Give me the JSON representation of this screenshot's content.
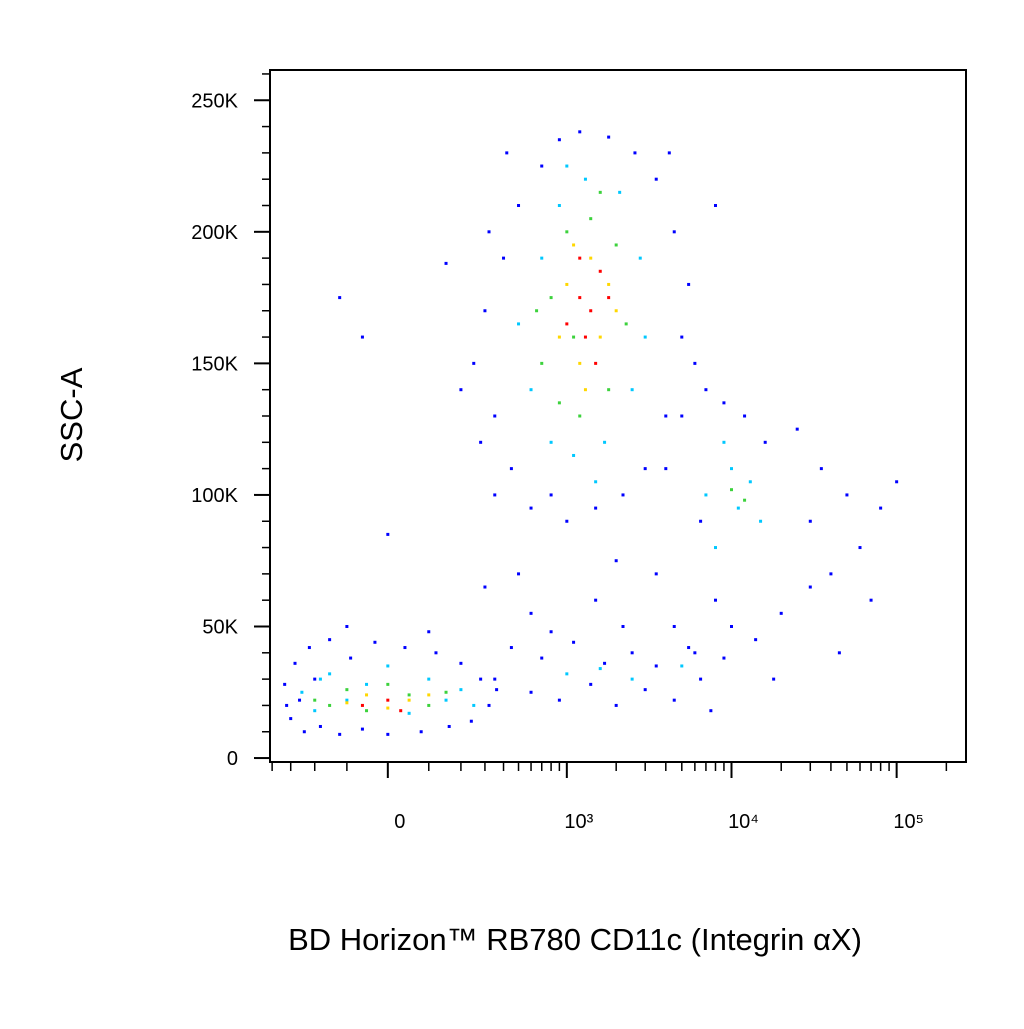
{
  "chart_data": {
    "type": "scatter",
    "x_label": "BD Horizon™ RB780 CD11c (Integrin αX)",
    "y_label": "SSC-A",
    "xscale": "biexponential",
    "xlim": [
      -413,
      263000
    ],
    "ylim": [
      -1500,
      261500
    ],
    "xticks": [
      {
        "value": 0,
        "label": "0"
      },
      {
        "value": 1000,
        "label": "10³"
      },
      {
        "value": 10000,
        "label": "10⁴"
      },
      {
        "value": 100000,
        "label": "10⁵"
      }
    ],
    "xminorticks": [
      -400,
      -300,
      -200,
      -100,
      100,
      200,
      300,
      400,
      500,
      600,
      700,
      800,
      900,
      2000,
      3000,
      4000,
      5000,
      6000,
      7000,
      8000,
      9000,
      20000,
      30000,
      40000,
      50000,
      60000,
      70000,
      80000,
      90000,
      200000
    ],
    "yticks": [
      {
        "value": 0,
        "label": "0"
      },
      {
        "value": 50000,
        "label": "50K"
      },
      {
        "value": 100000,
        "label": "100K"
      },
      {
        "value": 150000,
        "label": "150K"
      },
      {
        "value": 200000,
        "label": "200K"
      },
      {
        "value": 250000,
        "label": "250K"
      }
    ],
    "yminorticks": [
      10000,
      20000,
      30000,
      40000,
      60000,
      70000,
      80000,
      90000,
      110000,
      120000,
      130000,
      140000,
      160000,
      170000,
      180000,
      190000,
      210000,
      220000,
      230000,
      240000,
      260000
    ],
    "series": [
      {
        "color": "#0000ff",
        "x": [
          -330,
          -300,
          -280,
          -260,
          -240,
          -220,
          -200,
          -180,
          -150,
          -120,
          -90,
          -60,
          -30,
          0,
          40,
          80,
          120,
          160,
          200,
          240,
          280,
          320,
          360,
          -320,
          -100,
          100,
          250,
          300,
          350,
          400,
          450,
          500,
          600,
          700,
          800,
          900,
          1000,
          1200,
          1500,
          1800,
          2200,
          2600,
          3000,
          3500,
          4000,
          4500,
          5000,
          5500,
          6000,
          350,
          280,
          420,
          4200,
          320,
          -120,
          150,
          -60,
          0,
          200,
          300,
          500,
          1500,
          2000,
          8000,
          600,
          3500,
          4000,
          4500,
          5000,
          6000,
          6500,
          7000,
          8000,
          9000,
          10000,
          12000,
          14000,
          16000,
          20000,
          25000,
          30000,
          35000,
          40000,
          50000,
          60000,
          70000,
          80000,
          100000,
          45000,
          18000,
          30000,
          350,
          450,
          600,
          700,
          900,
          1100,
          1400,
          1700,
          2000,
          2500,
          3000,
          3500,
          4500,
          5500,
          6500,
          7500,
          9000,
          800,
          2200
        ],
        "y": [
          28000,
          15000,
          36000,
          22000,
          10000,
          42000,
          30000,
          12000,
          45000,
          9000,
          38000,
          11000,
          44000,
          9000,
          42000,
          10000,
          40000,
          12000,
          36000,
          14000,
          30000,
          20000,
          26000,
          20000,
          50000,
          48000,
          150000,
          170000,
          130000,
          190000,
          110000,
          210000,
          95000,
          225000,
          100000,
          235000,
          90000,
          238000,
          95000,
          236000,
          100000,
          230000,
          110000,
          220000,
          130000,
          200000,
          160000,
          180000,
          150000,
          100000,
          120000,
          230000,
          230000,
          200000,
          175000,
          188000,
          160000,
          85000,
          140000,
          65000,
          70000,
          60000,
          75000,
          210000,
          55000,
          70000,
          110000,
          50000,
          130000,
          40000,
          90000,
          140000,
          60000,
          135000,
          50000,
          130000,
          45000,
          120000,
          55000,
          125000,
          65000,
          110000,
          70000,
          100000,
          80000,
          60000,
          95000,
          105000,
          40000,
          30000,
          90000,
          30000,
          42000,
          25000,
          38000,
          22000,
          44000,
          28000,
          36000,
          20000,
          40000,
          26000,
          35000,
          22000,
          42000,
          30000,
          18000,
          38000,
          48000,
          50000
        ]
      },
      {
        "color": "#00c8ff",
        "x": [
          -250,
          -200,
          -150,
          -100,
          -50,
          50,
          100,
          150,
          200,
          -180,
          0,
          250,
          600,
          700,
          800,
          900,
          1100,
          1300,
          1700,
          2100,
          2500,
          2800,
          500,
          3000,
          1500,
          1000,
          7000,
          8000,
          10000,
          11000,
          13000,
          9000,
          15000,
          1000,
          1600,
          2500,
          5000
        ],
        "y": [
          25000,
          18000,
          32000,
          22000,
          28000,
          17000,
          30000,
          22000,
          26000,
          30000,
          35000,
          20000,
          140000,
          190000,
          120000,
          210000,
          115000,
          220000,
          120000,
          215000,
          140000,
          190000,
          165000,
          160000,
          105000,
          225000,
          100000,
          80000,
          110000,
          95000,
          105000,
          120000,
          90000,
          32000,
          34000,
          30000,
          35000
        ]
      },
      {
        "color": "#3cd23c",
        "x": [
          -150,
          -100,
          -50,
          50,
          100,
          0,
          -200,
          150,
          700,
          800,
          900,
          1000,
          1200,
          1400,
          1800,
          2000,
          2300,
          650,
          1100,
          1600,
          10000,
          12000
        ],
        "y": [
          20000,
          26000,
          18000,
          24000,
          20000,
          28000,
          22000,
          25000,
          150000,
          175000,
          135000,
          200000,
          130000,
          205000,
          140000,
          195000,
          165000,
          170000,
          160000,
          215000,
          102000,
          98000
        ]
      },
      {
        "color": "#ffd700",
        "x": [
          -100,
          -50,
          0,
          50,
          100,
          900,
          1000,
          1200,
          1400,
          1600,
          1800,
          2000,
          1100,
          1300
        ],
        "y": [
          21000,
          24000,
          19000,
          22000,
          24000,
          160000,
          180000,
          150000,
          190000,
          160000,
          180000,
          170000,
          195000,
          140000
        ]
      },
      {
        "color": "#ff0000",
        "x": [
          -60,
          0,
          30,
          1000,
          1200,
          1400,
          1600,
          1300,
          1500,
          1800,
          1200
        ],
        "y": [
          20000,
          22000,
          18000,
          165000,
          175000,
          170000,
          185000,
          160000,
          150000,
          175000,
          190000
        ]
      }
    ]
  }
}
